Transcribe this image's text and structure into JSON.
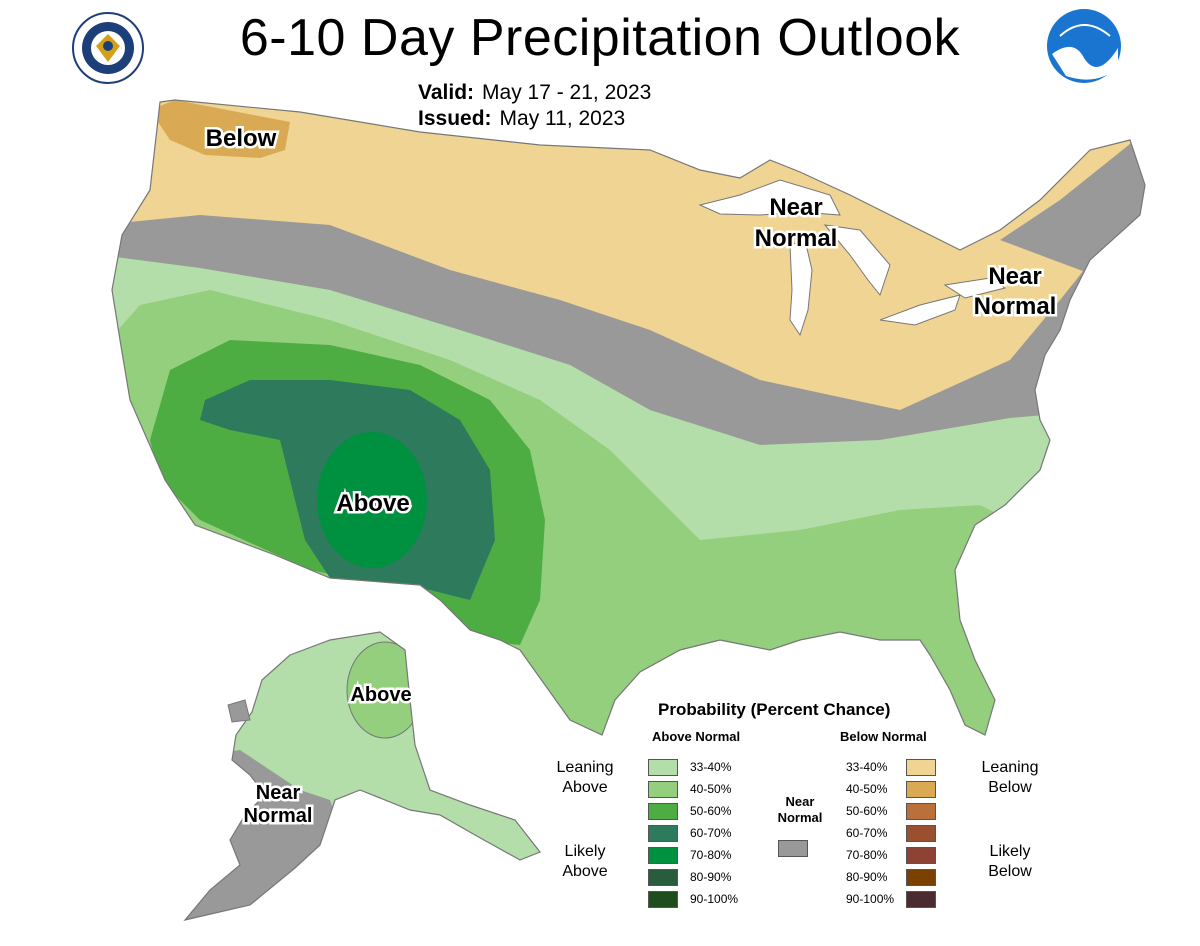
{
  "title": "6-10 Day Precipitation Outlook",
  "valid": {
    "label": "Valid:",
    "value": "May 17 - 21, 2023"
  },
  "issued": {
    "label": "Issued:",
    "value": "May 11, 2023"
  },
  "map_labels": {
    "below_nw": "Below",
    "near_normal_lakes_1": "Near",
    "near_normal_lakes_2": "Normal",
    "near_normal_ne_1": "Near",
    "near_normal_ne_2": "Normal",
    "above_sw": "Above",
    "above_ak": "Above",
    "near_normal_ak_1": "Near",
    "near_normal_ak_2": "Normal"
  },
  "legend": {
    "title": "Probability (Percent Chance)",
    "above_heading": "Above Normal",
    "below_heading": "Below Normal",
    "near_normal_label": "Near Normal",
    "leaning_above": "Leaning Above",
    "likely_above": "Likely Above",
    "leaning_below": "Leaning Below",
    "likely_below": "Likely Below",
    "above_levels": [
      {
        "range": "33-40%",
        "color": "#b3dea9"
      },
      {
        "range": "40-50%",
        "color": "#94cf7e"
      },
      {
        "range": "50-60%",
        "color": "#4dad42"
      },
      {
        "range": "60-70%",
        "color": "#2e7a5c"
      },
      {
        "range": "70-80%",
        "color": "#009140"
      },
      {
        "range": "80-90%",
        "color": "#285c3c"
      },
      {
        "range": "90-100%",
        "color": "#1e4e1e"
      }
    ],
    "below_levels": [
      {
        "range": "33-40%",
        "color": "#f0d493"
      },
      {
        "range": "40-50%",
        "color": "#d9a953"
      },
      {
        "range": "50-60%",
        "color": "#b9703a"
      },
      {
        "range": "60-70%",
        "color": "#9a5030"
      },
      {
        "range": "70-80%",
        "color": "#8e4234"
      },
      {
        "range": "80-90%",
        "color": "#7a4000"
      },
      {
        "range": "90-100%",
        "color": "#4a2c30"
      }
    ],
    "near_normal_color": "#999999"
  },
  "logos": {
    "left": "department-of-commerce-seal",
    "right": "noaa-logo"
  }
}
